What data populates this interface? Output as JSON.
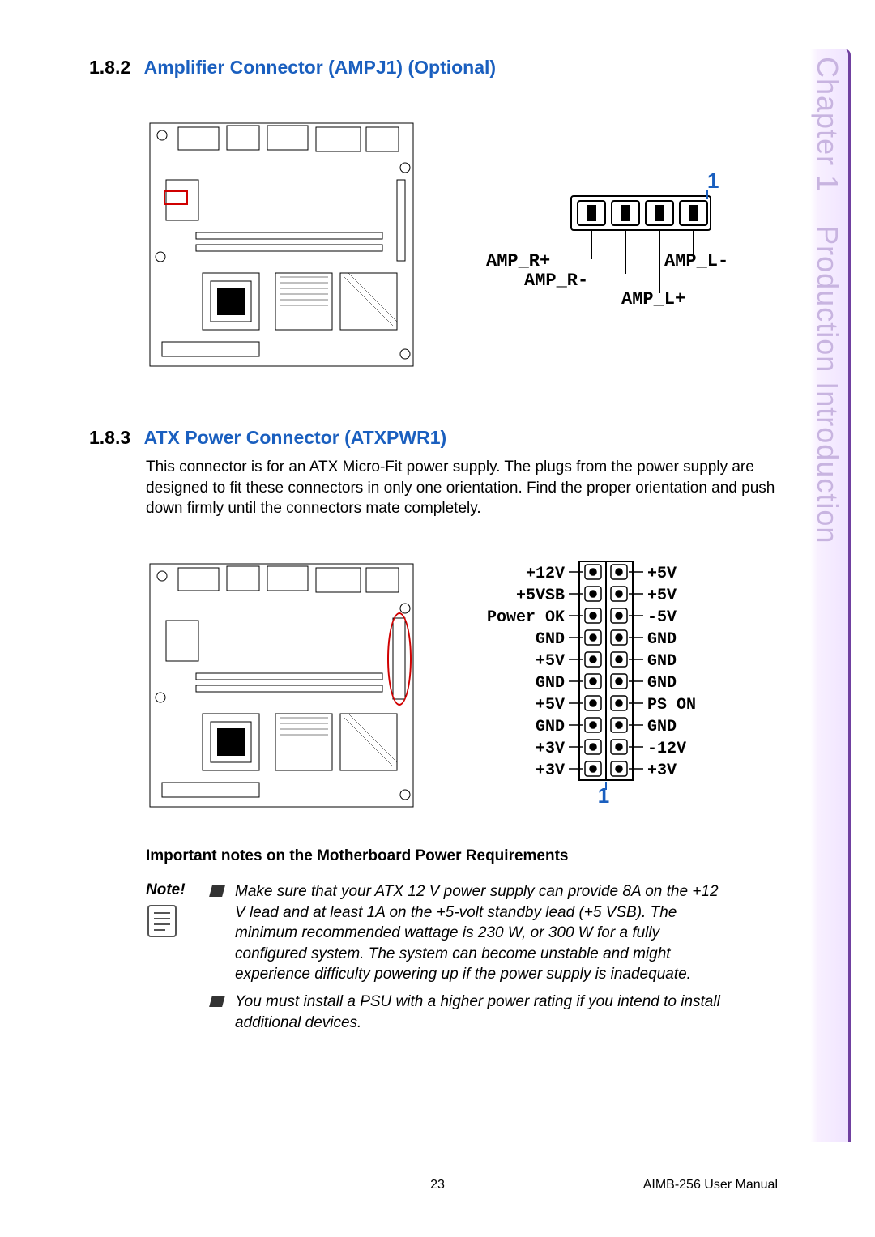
{
  "side": {
    "chapter": "Chapter 1",
    "title": "Production Introduction"
  },
  "sec182": {
    "num": "1.8.2",
    "title": "Amplifier Connector (AMPJ1) (Optional)",
    "pinout": {
      "one": "1",
      "labels": [
        "AMP_R+",
        "AMP_R-",
        "AMP_L-",
        "AMP_L+"
      ]
    }
  },
  "sec183": {
    "num": "1.8.3",
    "title": "ATX Power Connector (ATXPWR1)",
    "body": "This connector is for an ATX Micro-Fit power supply. The plugs from the power supply are designed to fit these connectors in only one orientation. Find the proper orientation and push down firmly until the connectors mate completely.",
    "pinout": {
      "one": "1",
      "left": [
        "+12V",
        "+5VSB",
        "Power OK",
        "GND",
        "+5V",
        "GND",
        "+5V",
        "GND",
        "+3V",
        "+3V"
      ],
      "right": [
        "+5V",
        "+5V",
        "-5V",
        "GND",
        "GND",
        "GND",
        "PS_ON",
        "GND",
        "-12V",
        "+3V"
      ]
    },
    "notes_heading": "Important notes on the Motherboard Power Requirements",
    "note_label": "Note!",
    "bullets": [
      "Make sure that your ATX 12 V power supply can provide 8A on the +12 V lead and at least 1A on the +5-volt standby lead (+5 VSB). The minimum recommended wattage is 230 W, or 300 W for a fully configured system. The system can become unstable and might experience difficulty powering up if the power supply is inadequate.",
      "You must install a PSU with a higher power rating if you intend to install additional devices."
    ]
  },
  "footer": {
    "page": "23",
    "manual": "AIMB-256 User Manual"
  },
  "colors": {
    "heading_blue": "#1a5fbf",
    "side_border": "#7040a0",
    "side_text": "#c8b4e0",
    "highlight_red": "#d00000"
  }
}
